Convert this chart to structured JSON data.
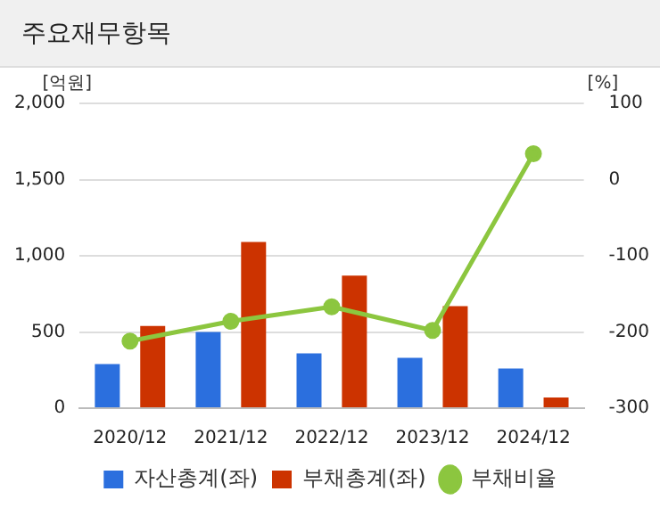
{
  "chart_data": {
    "type": "bar",
    "title": "주요재무항목",
    "ylabel": "[억원]",
    "y2label": "[%]",
    "categories": [
      "2020/12",
      "2021/12",
      "2022/12",
      "2023/12",
      "2024/12"
    ],
    "series": [
      {
        "name": "자산총계(좌)",
        "color": "#2b6fde",
        "values": [
          290,
          500,
          360,
          330,
          260
        ]
      },
      {
        "name": "부채총계(좌)",
        "color": "#cc3300",
        "values": [
          540,
          1090,
          870,
          670,
          70
        ]
      },
      {
        "name": "부채비율",
        "type": "line",
        "axis": "y2",
        "color": "#8cc63f",
        "values": [
          -212,
          -186,
          -167,
          -198,
          34
        ]
      }
    ],
    "ylim": [
      0,
      2000
    ],
    "yticks": [
      0,
      500,
      {
        "value": 1000,
        "label": "1,000"
      },
      {
        "value": 1500,
        "label": "1,500"
      },
      {
        "value": 2000,
        "label": "2,000"
      }
    ],
    "y2lim": [
      -300,
      100
    ],
    "y2ticks": [
      -300,
      -200,
      -100,
      0,
      100
    ],
    "grid": "y",
    "legend": "bottom",
    "marker": "circle"
  }
}
